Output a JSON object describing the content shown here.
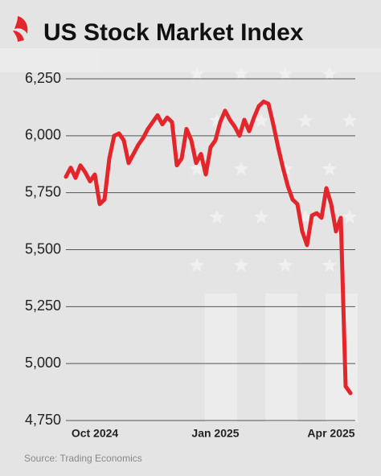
{
  "chart_data": {
    "type": "line",
    "title": "US Stock Market Index",
    "source": "Source: Trading Economics",
    "categories": [
      null,
      null,
      null,
      null,
      null,
      null,
      "Oct 2024",
      null,
      null,
      null,
      null,
      null,
      null,
      null,
      null,
      null,
      null,
      null,
      null,
      null,
      null,
      null,
      null,
      null,
      null,
      null,
      null,
      null,
      null,
      null,
      null,
      "Jan 2025",
      null,
      null,
      null,
      null,
      null,
      null,
      null,
      null,
      null,
      null,
      null,
      null,
      null,
      null,
      null,
      null,
      null,
      null,
      null,
      null,
      null,
      null,
      null,
      "Apr 2025",
      null,
      null,
      null,
      null
    ],
    "values": [
      5820,
      5860,
      5815,
      5870,
      5840,
      5800,
      5830,
      5700,
      5720,
      5900,
      6000,
      6010,
      5980,
      5880,
      5920,
      5960,
      5990,
      6030,
      6060,
      6090,
      6050,
      6080,
      6060,
      5870,
      5900,
      6030,
      5980,
      5880,
      5920,
      5830,
      5950,
      5980,
      6060,
      6110,
      6070,
      6040,
      6000,
      6070,
      6020,
      6080,
      6130,
      6150,
      6140,
      6050,
      5950,
      5860,
      5780,
      5720,
      5700,
      5580,
      5520,
      5650,
      5660,
      5640,
      5770,
      5700,
      5580,
      5640,
      4900,
      4870
    ],
    "color": "#e3262b",
    "ylim": [
      4750,
      6250
    ],
    "yticks": [
      {
        "value": 4750,
        "label": "4,750"
      },
      {
        "value": 5000,
        "label": "5,000"
      },
      {
        "value": 5250,
        "label": "5,250"
      },
      {
        "value": 5500,
        "label": "5,500"
      },
      {
        "value": 5750,
        "label": "5,750"
      },
      {
        "value": 6000,
        "label": "6,000"
      },
      {
        "value": 6250,
        "label": "6,250"
      }
    ],
    "grid": true
  }
}
